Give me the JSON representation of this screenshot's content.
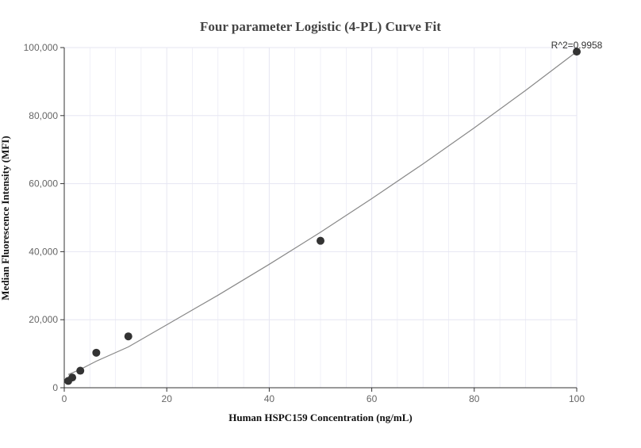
{
  "chart_data": {
    "type": "scatter",
    "title": "Four parameter Logistic (4-PL) Curve Fit",
    "xlabel": "Human HSPC159 Concentration (ng/mL)",
    "ylabel": "Median Fluorescence Intensity (MFI)",
    "xlim": [
      0,
      100
    ],
    "ylim": [
      0,
      100000
    ],
    "x_ticks": [
      0,
      20,
      40,
      60,
      80,
      100
    ],
    "y_ticks": [
      0,
      20000,
      40000,
      60000,
      80000,
      100000
    ],
    "x_tick_labels": [
      "0",
      "20",
      "40",
      "60",
      "80",
      "100"
    ],
    "y_tick_labels": [
      "0",
      "20,000",
      "40,000",
      "60,000",
      "80,000",
      "100,000"
    ],
    "grid": true,
    "annotation": "R^2=0.9958",
    "series": [
      {
        "type": "scatter",
        "x": [
          0.78,
          1.56,
          3.13,
          6.25,
          12.5,
          50,
          100
        ],
        "y": [
          2000,
          3000,
          5000,
          10300,
          15100,
          43200,
          98800
        ],
        "color": "#333333"
      },
      {
        "type": "line",
        "x": [
          0.78,
          3,
          6.25,
          12.5,
          20,
          30,
          40,
          50,
          60,
          70,
          80,
          90,
          100
        ],
        "y": [
          3900,
          5300,
          7800,
          12000,
          18500,
          27200,
          36300,
          45700,
          55600,
          65800,
          76400,
          87400,
          98800
        ],
        "color": "#888888"
      }
    ],
    "colors": {
      "grid": "#e6e6f2",
      "axis": "#333333",
      "points": "#333333",
      "fit_line": "#888888"
    }
  }
}
